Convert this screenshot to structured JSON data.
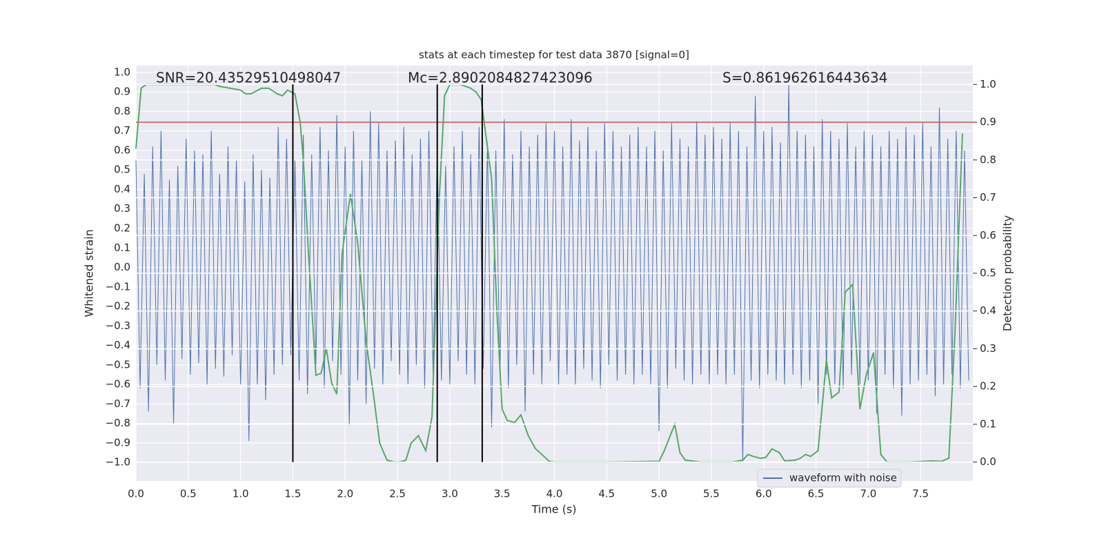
{
  "chart_data": {
    "type": "line",
    "title": "stats at each timestep for test data 3870 [signal=0]",
    "xlabel": "Time (s)",
    "ylabel": "Whitened strain",
    "y2label": "Detection probability",
    "annotations": [
      "SNR=20.43529510498047",
      "Mc=2.8902084827423096",
      "S=0.861962616443634"
    ],
    "xlim": [
      0,
      8
    ],
    "ylim": [
      -1.095,
      1.035
    ],
    "y2lim": [
      -0.05,
      1.05
    ],
    "xticks": [
      {
        "value": 0,
        "label": "0.0"
      },
      0.5,
      {
        "value": 1,
        "label": "1.0"
      },
      1.5,
      {
        "value": 2,
        "label": "2.0"
      },
      2.5,
      {
        "value": 3,
        "label": "3.0"
      },
      3.5,
      {
        "value": 4,
        "label": "4.0"
      },
      4.5,
      {
        "value": 5,
        "label": "5.0"
      },
      5.5,
      {
        "value": 6,
        "label": "6.0"
      },
      6.5,
      {
        "value": 7,
        "label": "7.0"
      },
      7.5
    ],
    "yticks": [
      {
        "value": -1,
        "label": "−1.0"
      },
      {
        "value": -0.9,
        "label": "−0.9"
      },
      {
        "value": -0.8,
        "label": "−0.8"
      },
      {
        "value": -0.7,
        "label": "−0.7"
      },
      {
        "value": -0.6,
        "label": "−0.6"
      },
      {
        "value": -0.5,
        "label": "−0.5"
      },
      {
        "value": -0.4,
        "label": "−0.4"
      },
      {
        "value": -0.3,
        "label": "−0.3"
      },
      {
        "value": -0.2,
        "label": "−0.2"
      },
      {
        "value": -0.1,
        "label": "−0.1"
      },
      {
        "value": 0,
        "label": "0.0"
      },
      0.1,
      0.2,
      0.3,
      0.4,
      0.5,
      0.6,
      0.7,
      0.8,
      0.9,
      {
        "value": 1,
        "label": "1.0"
      }
    ],
    "y2ticks": [
      {
        "value": 0,
        "label": "0.0"
      },
      0.1,
      0.2,
      0.3,
      0.4,
      0.5,
      0.6,
      0.7,
      0.8,
      0.9,
      {
        "value": 1,
        "label": "1.0"
      }
    ],
    "grid": true,
    "legend": "lower right",
    "series": [
      {
        "name": "waveform with noise",
        "color": "#4c72b0",
        "x": [
          0,
          0.04,
          0.08,
          0.12,
          0.16,
          0.2,
          0.24,
          0.28,
          0.32,
          0.36,
          0.4,
          0.44,
          0.48,
          0.52,
          0.56,
          0.6,
          0.64,
          0.68,
          0.72,
          0.76,
          0.8,
          0.84,
          0.88,
          0.92,
          0.96,
          1,
          1.04,
          1.08,
          1.12,
          1.16,
          1.2,
          1.24,
          1.28,
          1.32,
          1.36,
          1.4,
          1.44,
          1.48,
          1.52,
          1.56,
          1.6,
          1.64,
          1.68,
          1.72,
          1.76,
          1.8,
          1.84,
          1.88,
          1.92,
          1.96,
          2,
          2.04,
          2.08,
          2.12,
          2.16,
          2.2,
          2.24,
          2.28,
          2.32,
          2.36,
          2.4,
          2.44,
          2.48,
          2.52,
          2.56,
          2.6,
          2.64,
          2.68,
          2.72,
          2.76,
          2.8,
          2.84,
          2.88,
          2.92,
          2.96,
          3,
          3.04,
          3.08,
          3.12,
          3.16,
          3.2,
          3.24,
          3.28,
          3.32,
          3.36,
          3.4,
          3.44,
          3.48,
          3.52,
          3.56,
          3.6,
          3.64,
          3.68,
          3.72,
          3.76,
          3.8,
          3.84,
          3.88,
          3.92,
          3.96,
          4,
          4.04,
          4.08,
          4.12,
          4.16,
          4.2,
          4.24,
          4.28,
          4.32,
          4.36,
          4.4,
          4.44,
          4.48,
          4.52,
          4.56,
          4.6,
          4.64,
          4.68,
          4.72,
          4.76,
          4.8,
          4.84,
          4.88,
          4.92,
          4.96,
          5,
          5.04,
          5.08,
          5.12,
          5.16,
          5.2,
          5.24,
          5.28,
          5.32,
          5.36,
          5.4,
          5.44,
          5.48,
          5.52,
          5.56,
          5.6,
          5.64,
          5.68,
          5.72,
          5.76,
          5.8,
          5.84,
          5.88,
          5.92,
          5.96,
          6,
          6.04,
          6.08,
          6.12,
          6.16,
          6.2,
          6.24,
          6.28,
          6.32,
          6.36,
          6.4,
          6.44,
          6.48,
          6.52,
          6.56,
          6.6,
          6.64,
          6.68,
          6.72,
          6.76,
          6.8,
          6.84,
          6.88,
          6.92,
          6.96,
          7,
          7.04,
          7.08,
          7.12,
          7.16,
          7.2,
          7.24,
          7.28,
          7.32,
          7.36,
          7.4,
          7.44,
          7.48,
          7.52,
          7.56,
          7.6,
          7.64,
          7.68,
          7.72,
          7.76,
          7.8,
          7.84,
          7.88,
          7.92,
          7.96
        ],
        "values": [
          0.55,
          -0.62,
          0.48,
          -0.74,
          0.62,
          -0.5,
          0.7,
          -0.58,
          0.45,
          -0.8,
          0.52,
          -0.47,
          0.66,
          -0.55,
          0.6,
          -0.49,
          0.58,
          -0.6,
          0.7,
          -0.52,
          0.48,
          -0.56,
          0.62,
          -0.45,
          0.55,
          -0.6,
          0.44,
          -0.89,
          0.58,
          -0.6,
          0.5,
          -0.68,
          0.46,
          -0.55,
          0.72,
          -0.5,
          0.66,
          -0.45,
          0.55,
          -0.58,
          0.68,
          -0.65,
          0.58,
          -0.5,
          0.72,
          -0.62,
          0.6,
          -0.48,
          0.78,
          -0.55,
          0.62,
          -0.81,
          0.7,
          -0.58,
          0.55,
          -0.7,
          0.8,
          -0.52,
          0.74,
          -0.6,
          0.6,
          -0.48,
          0.65,
          -0.55,
          0.72,
          -0.6,
          0.58,
          -0.5,
          0.66,
          -0.62,
          0.7,
          -0.55,
          0.6,
          -0.58,
          0.52,
          -0.6,
          0.62,
          -0.48,
          0.7,
          -0.55,
          0.58,
          -0.6,
          0.72,
          -0.52,
          0.64,
          -0.82,
          0.6,
          -0.55,
          0.76,
          -0.62,
          0.58,
          -0.5,
          0.7,
          -0.74,
          0.62,
          -0.55,
          0.68,
          -0.6,
          0.74,
          -0.48,
          0.7,
          -0.6,
          0.62,
          -0.55,
          0.76,
          -0.6,
          0.65,
          -0.52,
          0.72,
          -0.58,
          0.6,
          -0.62,
          0.74,
          -0.5,
          0.7,
          -0.58,
          0.62,
          -0.55,
          0.68,
          -0.6,
          0.72,
          -0.55,
          0.62,
          -0.6,
          0.7,
          -0.84,
          0.6,
          -0.62,
          0.74,
          -0.52,
          0.66,
          -0.58,
          0.62,
          -0.6,
          0.75,
          -0.55,
          0.68,
          -0.6,
          0.72,
          -0.55,
          0.66,
          -0.6,
          0.74,
          -0.55,
          0.7,
          -1.0,
          0.62,
          -0.58,
          0.88,
          -0.62,
          0.7,
          -0.55,
          0.72,
          -0.58,
          0.64,
          -0.6,
          0.94,
          -0.55,
          0.7,
          -0.62,
          0.68,
          -0.58,
          0.62,
          -0.7,
          0.76,
          -0.55,
          0.7,
          -0.6,
          0.66,
          -0.62,
          0.74,
          -0.55,
          0.62,
          -0.6,
          0.7,
          -0.58,
          0.68,
          -0.75,
          0.62,
          -0.55,
          0.7,
          -0.62,
          0.66,
          -0.76,
          0.72,
          -0.6,
          0.68,
          -0.58,
          0.74,
          -0.55,
          0.62,
          -0.66,
          0.82,
          -0.6,
          0.66,
          -0.55,
          0.7,
          -0.62,
          0.6,
          -0.58
        ]
      },
      {
        "color": "#55a868",
        "axis": "y2",
        "x": [
          0,
          0.05,
          0.1,
          0.2,
          0.3,
          0.4,
          0.5,
          0.6,
          0.75,
          0.8,
          0.9,
          1,
          1.05,
          1.1,
          1.2,
          1.27,
          1.35,
          1.4,
          1.45,
          1.52,
          1.57,
          1.6,
          1.65,
          1.72,
          1.77,
          1.82,
          1.87,
          1.92,
          1.97,
          2.05,
          2.12,
          2.2,
          2.27,
          2.33,
          2.4,
          2.47,
          2.52,
          2.58,
          2.63,
          2.7,
          2.77,
          2.83,
          2.9,
          2.95,
          3,
          3.1,
          3.2,
          3.25,
          3.3,
          3.4,
          3.45,
          3.5,
          3.55,
          3.62,
          3.68,
          3.75,
          3.82,
          3.9,
          3.95,
          4,
          4.5,
          5,
          5.05,
          5.1,
          5.15,
          5.2,
          5.25,
          5.4,
          5.7,
          5.8,
          5.85,
          5.9,
          5.97,
          6.02,
          6.08,
          6.15,
          6.2,
          6.3,
          6.35,
          6.4,
          6.45,
          6.52,
          6.57,
          6.6,
          6.65,
          6.72,
          6.78,
          6.85,
          6.92,
          6.98,
          7.05,
          7.12,
          7.18,
          7.4,
          7.6,
          7.7,
          7.77,
          7.83,
          7.87,
          7.9
        ],
        "values": [
          0.83,
          0.99,
          1.0,
          1.0,
          1.0,
          1.0,
          1.0,
          1.0,
          1.0,
          0.995,
          0.99,
          0.985,
          0.975,
          0.975,
          0.99,
          0.99,
          0.975,
          0.97,
          0.985,
          0.975,
          0.9,
          0.8,
          0.55,
          0.23,
          0.235,
          0.3,
          0.21,
          0.18,
          0.55,
          0.71,
          0.58,
          0.32,
          0.18,
          0.05,
          0.005,
          0,
          0,
          0.005,
          0.05,
          0.07,
          0.03,
          0.12,
          0.7,
          0.97,
          1.0,
          1.0,
          0.99,
          0.98,
          0.96,
          0.75,
          0.4,
          0.14,
          0.11,
          0.105,
          0.125,
          0.07,
          0.035,
          0.015,
          0.002,
          0,
          0,
          0.002,
          0.03,
          0.065,
          0.1,
          0.025,
          0.005,
          0,
          0,
          0.005,
          0.02,
          0.015,
          0.01,
          0.012,
          0.035,
          0.025,
          0.003,
          0.005,
          0.01,
          0.02,
          0.015,
          0.03,
          0.18,
          0.27,
          0.17,
          0.185,
          0.45,
          0.47,
          0.14,
          0.23,
          0.29,
          0.02,
          0,
          0,
          0.003,
          0.002,
          0.01,
          0.35,
          0.65,
          0.87
        ]
      }
    ],
    "threshold": {
      "value": 0.9,
      "axis": "y2",
      "color": "#c44e52"
    },
    "vlines": {
      "x": [
        1.5,
        2.88,
        3.31
      ],
      "color": "#000000"
    }
  }
}
